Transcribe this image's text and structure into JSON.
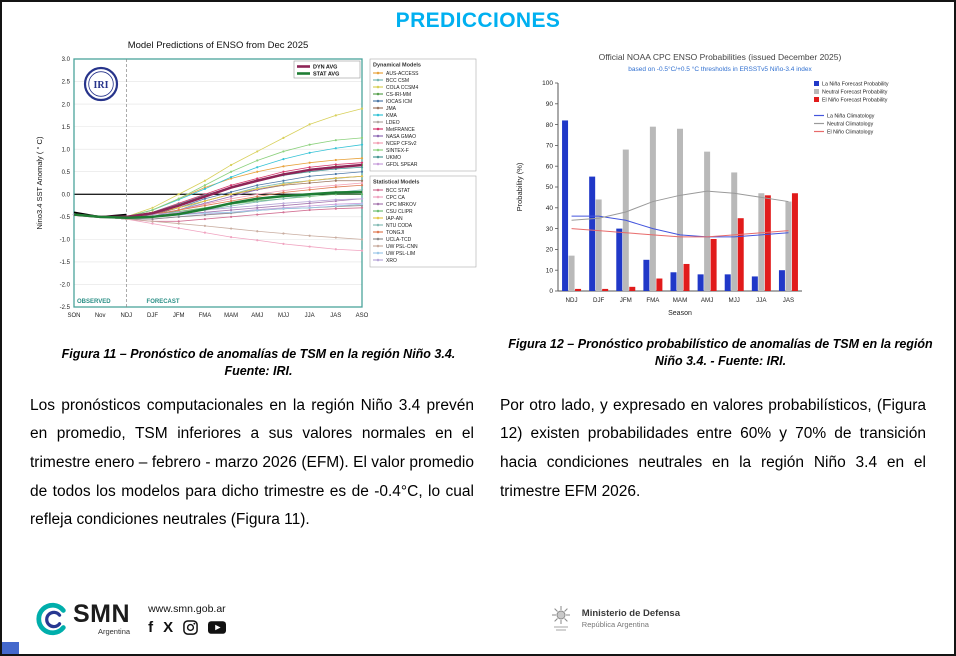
{
  "page": {
    "title": "PREDICCIONES"
  },
  "figures": {
    "fig11_caption": "Figura 11 – Pronóstico de anomalías de TSM en la región Niño 3.4. Fuente: IRI.",
    "fig12_caption": "Figura 12 – Pronóstico probabilístico de anomalías de TSM en la región Niño 3.4. - Fuente: IRI."
  },
  "paragraphs": {
    "left": "Los pronósticos computacionales en la región Niño 3.4 prevén en promedio, TSM inferiores a sus valores normales en el trimestre enero – febrero - marzo 2026 (EFM). El valor promedio de todos los modelos para dicho trimestre es de -0.4°C, lo cual refleja condiciones neutrales (Figura 11).",
    "right": "Por otro lado, y expresado en valores probabilísticos, (Figura 12) existen probabilidades entre 60% y 70% de transición hacia condiciones neutrales en la región Niño 3.4 en el trimestre EFM 2026."
  },
  "footer": {
    "website": "www.smn.gob.ar",
    "smn": "SMN",
    "smn_sub": "Argentina",
    "ministry_line1": "Ministerio de Defensa",
    "ministry_line2": "República Argentina",
    "social_icons": [
      "facebook-icon",
      "x-icon",
      "instagram-icon",
      "youtube-icon"
    ]
  },
  "chart_data": [
    {
      "type": "line",
      "title": "Model Predictions of ENSO from Dec 2025",
      "ylabel": "Nino3.4 SST Anomaly ( ° C)",
      "ylim": [
        -2.5,
        3.0
      ],
      "ytick_step": 0.5,
      "categories": [
        "SON",
        "Nov",
        "NDJ",
        "DJF",
        "JFM",
        "FMA",
        "MAM",
        "AMJ",
        "MJJ",
        "JJA",
        "JAS",
        "ASO"
      ],
      "observed_label": "OBSERVED",
      "forecast_label": "FORECAST",
      "iri_logo_text": "IRI",
      "frame_color": "#4aa39b",
      "observed": {
        "color": "#000000",
        "values": [
          -0.4,
          -0.5,
          -0.45
        ]
      },
      "avg_series": [
        {
          "name": "DYN AVG",
          "color": "#8e2457",
          "values": [
            -0.45,
            -0.5,
            -0.5,
            -0.42,
            -0.25,
            -0.05,
            0.15,
            0.3,
            0.44,
            0.54,
            0.6,
            0.65
          ]
        },
        {
          "name": "STAT AVG",
          "color": "#1e7d34",
          "values": [
            -0.45,
            -0.5,
            -0.52,
            -0.5,
            -0.44,
            -0.33,
            -0.2,
            -0.1,
            -0.04,
            0,
            0.04,
            0.05
          ]
        }
      ],
      "groups": [
        {
          "header": "Dynamical Models",
          "series": [
            {
              "name": "AUS-ACCESS",
              "color": "#e8a33d",
              "values": [
                -0.45,
                -0.5,
                -0.5,
                -0.35,
                -0.1,
                0.15,
                0.35,
                0.5,
                0.62,
                0.7,
                0.76,
                0.8
              ]
            },
            {
              "name": "BCC CSM",
              "color": "#76b7b2",
              "values": [
                -0.45,
                -0.5,
                -0.55,
                -0.5,
                -0.35,
                -0.15,
                0,
                0.15,
                0.25,
                0.3,
                0.35,
                0.4
              ]
            },
            {
              "name": "COLA CCSM4",
              "color": "#d8d05a",
              "values": [
                -0.45,
                -0.5,
                -0.5,
                -0.3,
                0,
                0.3,
                0.65,
                0.95,
                1.25,
                1.55,
                1.75,
                1.9
              ]
            },
            {
              "name": "CS-IRI-MM",
              "color": "#59a14f",
              "values": [
                -0.45,
                -0.5,
                -0.5,
                -0.4,
                -0.25,
                -0.05,
                0.15,
                0.32,
                0.45,
                0.55,
                0.62,
                0.65
              ]
            },
            {
              "name": "IOCAS ICM",
              "color": "#4e79a7",
              "values": [
                -0.45,
                -0.5,
                -0.55,
                -0.45,
                -0.3,
                -0.1,
                0.05,
                0.2,
                0.3,
                0.4,
                0.45,
                0.5
              ]
            },
            {
              "name": "JMA",
              "color": "#9c755f",
              "values": [
                -0.45,
                -0.5,
                -0.5,
                -0.45,
                -0.3,
                -0.15,
                0,
                0.1,
                0.2,
                0.25,
                0.3,
                0.3
              ]
            },
            {
              "name": "KMA",
              "color": "#35c3d6",
              "values": [
                -0.45,
                -0.5,
                -0.5,
                -0.35,
                -0.12,
                0.12,
                0.38,
                0.6,
                0.78,
                0.92,
                1.02,
                1.1
              ]
            },
            {
              "name": "LDEO",
              "color": "#b2a8a2",
              "values": [
                -0.45,
                -0.5,
                -0.55,
                -0.5,
                -0.4,
                -0.3,
                -0.2,
                -0.1,
                -0.05,
                0,
                0.05,
                0.05
              ]
            },
            {
              "name": "MetFRANCE",
              "color": "#d6356c",
              "values": [
                -0.45,
                -0.5,
                -0.5,
                -0.4,
                -0.2,
                0,
                0.2,
                0.35,
                0.5,
                0.6,
                0.66,
                0.7
              ]
            },
            {
              "name": "NASA GMAO",
              "color": "#8f6bb5",
              "values": [
                -0.45,
                -0.5,
                -0.55,
                -0.5,
                -0.35,
                -0.2,
                -0.05,
                0.1,
                0.22,
                0.3,
                0.36,
                0.4
              ]
            },
            {
              "name": "NCEP CFSv2",
              "color": "#f2a0b4",
              "values": [
                -0.45,
                -0.5,
                -0.5,
                -0.45,
                -0.35,
                -0.22,
                -0.1,
                0,
                0.08,
                0.15,
                0.2,
                0.25
              ]
            },
            {
              "name": "SINTEX-F",
              "color": "#8cd17d",
              "values": [
                -0.45,
                -0.5,
                -0.5,
                -0.35,
                -0.1,
                0.2,
                0.5,
                0.75,
                0.95,
                1.1,
                1.2,
                1.25
              ]
            },
            {
              "name": "UKMO",
              "color": "#499894",
              "values": [
                -0.45,
                -0.5,
                -0.5,
                -0.4,
                -0.22,
                -0.02,
                0.15,
                0.3,
                0.42,
                0.5,
                0.56,
                0.6
              ]
            },
            {
              "name": "GFDL SPEAR",
              "color": "#c9a0dc",
              "values": [
                -0.45,
                -0.5,
                -0.55,
                -0.55,
                -0.5,
                -0.45,
                -0.4,
                -0.34,
                -0.3,
                -0.26,
                -0.22,
                -0.2
              ]
            }
          ]
        },
        {
          "header": "Statistical Models",
          "series": [
            {
              "name": "BCC STAT",
              "color": "#d37295",
              "values": [
                -0.45,
                -0.5,
                -0.55,
                -0.6,
                -0.6,
                -0.55,
                -0.5,
                -0.45,
                -0.4,
                -0.35,
                -0.32,
                -0.3
              ]
            },
            {
              "name": "CPC CA",
              "color": "#f0a3c0",
              "values": [
                -0.45,
                -0.5,
                -0.55,
                -0.65,
                -0.75,
                -0.85,
                -0.95,
                -1.02,
                -1.1,
                -1.16,
                -1.22,
                -1.25
              ]
            },
            {
              "name": "CPC MRKOV",
              "color": "#a87ab0",
              "values": [
                -0.45,
                -0.5,
                -0.5,
                -0.5,
                -0.45,
                -0.4,
                -0.35,
                -0.3,
                -0.25,
                -0.2,
                -0.15,
                -0.1
              ]
            },
            {
              "name": "CSU CLIPR",
              "color": "#6fbf73",
              "values": [
                -0.45,
                -0.5,
                -0.5,
                -0.45,
                -0.38,
                -0.3,
                -0.22,
                -0.15,
                -0.1,
                -0.05,
                0,
                0
              ]
            },
            {
              "name": "IAP-AN",
              "color": "#e6c84a",
              "values": [
                -0.45,
                -0.5,
                -0.5,
                -0.4,
                -0.3,
                -0.15,
                0,
                0.12,
                0.22,
                0.3,
                0.36,
                0.4
              ]
            },
            {
              "name": "NTU CODA",
              "color": "#86bcb6",
              "values": [
                -0.45,
                -0.5,
                -0.55,
                -0.5,
                -0.44,
                -0.35,
                -0.26,
                -0.17,
                -0.1,
                -0.02,
                0.04,
                0.1
              ]
            },
            {
              "name": "TONGJI",
              "color": "#e07b54",
              "values": [
                -0.45,
                -0.5,
                -0.5,
                -0.45,
                -0.35,
                -0.25,
                -0.15,
                -0.05,
                0.04,
                0.1,
                0.16,
                0.2
              ]
            },
            {
              "name": "UCLA-TCD",
              "color": "#8c8c8c",
              "values": [
                -0.45,
                -0.5,
                -0.55,
                -0.55,
                -0.5,
                -0.46,
                -0.42,
                -0.36,
                -0.32,
                -0.3,
                -0.27,
                -0.25
              ]
            },
            {
              "name": "UW PSL-CNN",
              "color": "#c9ada0",
              "values": [
                -0.45,
                -0.5,
                -0.55,
                -0.6,
                -0.65,
                -0.7,
                -0.76,
                -0.82,
                -0.87,
                -0.92,
                -0.96,
                -1
              ]
            },
            {
              "name": "UW PSL-LIM",
              "color": "#9ec9e8",
              "values": [
                -0.45,
                -0.5,
                -0.5,
                -0.5,
                -0.46,
                -0.42,
                -0.4,
                -0.36,
                -0.32,
                -0.3,
                -0.26,
                -0.22
              ]
            },
            {
              "name": "XRO",
              "color": "#b8a7d9",
              "values": [
                -0.45,
                -0.5,
                -0.5,
                -0.45,
                -0.4,
                -0.35,
                -0.3,
                -0.25,
                -0.2,
                -0.16,
                -0.12,
                -0.1
              ]
            }
          ]
        }
      ]
    },
    {
      "type": "bar",
      "title": "Official NOAA CPC ENSO Probabilities (issued December 2025)",
      "subtitle": "based on -0.5°C/+0.5 °C thresholds in ERSSTv5 Niño-3.4 index",
      "ylabel": "Probability (%)",
      "xlabel": "Season",
      "ylim": [
        0,
        100
      ],
      "ytick_step": 10,
      "categories": [
        "NDJ",
        "DJF",
        "JFM",
        "FMA",
        "MAM",
        "AMJ",
        "MJJ",
        "JJA",
        "JAS"
      ],
      "bar_series": [
        {
          "name": "La Niña Forecast Probability",
          "color": "#2038c8",
          "values": [
            82,
            55,
            30,
            15,
            9,
            8,
            8,
            7,
            10
          ]
        },
        {
          "name": "Neutral Forecast Probability",
          "color": "#b9b9b9",
          "values": [
            17,
            44,
            68,
            79,
            78,
            67,
            57,
            47,
            43
          ]
        },
        {
          "name": "El Niño Forecast Probability",
          "color": "#e11b1b",
          "values": [
            1,
            1,
            2,
            6,
            13,
            25,
            35,
            46,
            47
          ]
        }
      ],
      "line_series": [
        {
          "name": "La Niña Climatology",
          "color": "#4455dd",
          "values": [
            36,
            36,
            34,
            30,
            27,
            26,
            26,
            27,
            28
          ]
        },
        {
          "name": "Neutral Climatology",
          "color": "#9a9a9a",
          "values": [
            34,
            35,
            38,
            43,
            46,
            48,
            47,
            45,
            43
          ]
        },
        {
          "name": "El Niño Climatology",
          "color": "#e86a6a",
          "values": [
            30,
            29,
            28,
            27,
            26,
            26,
            27,
            28,
            29
          ]
        }
      ]
    }
  ]
}
